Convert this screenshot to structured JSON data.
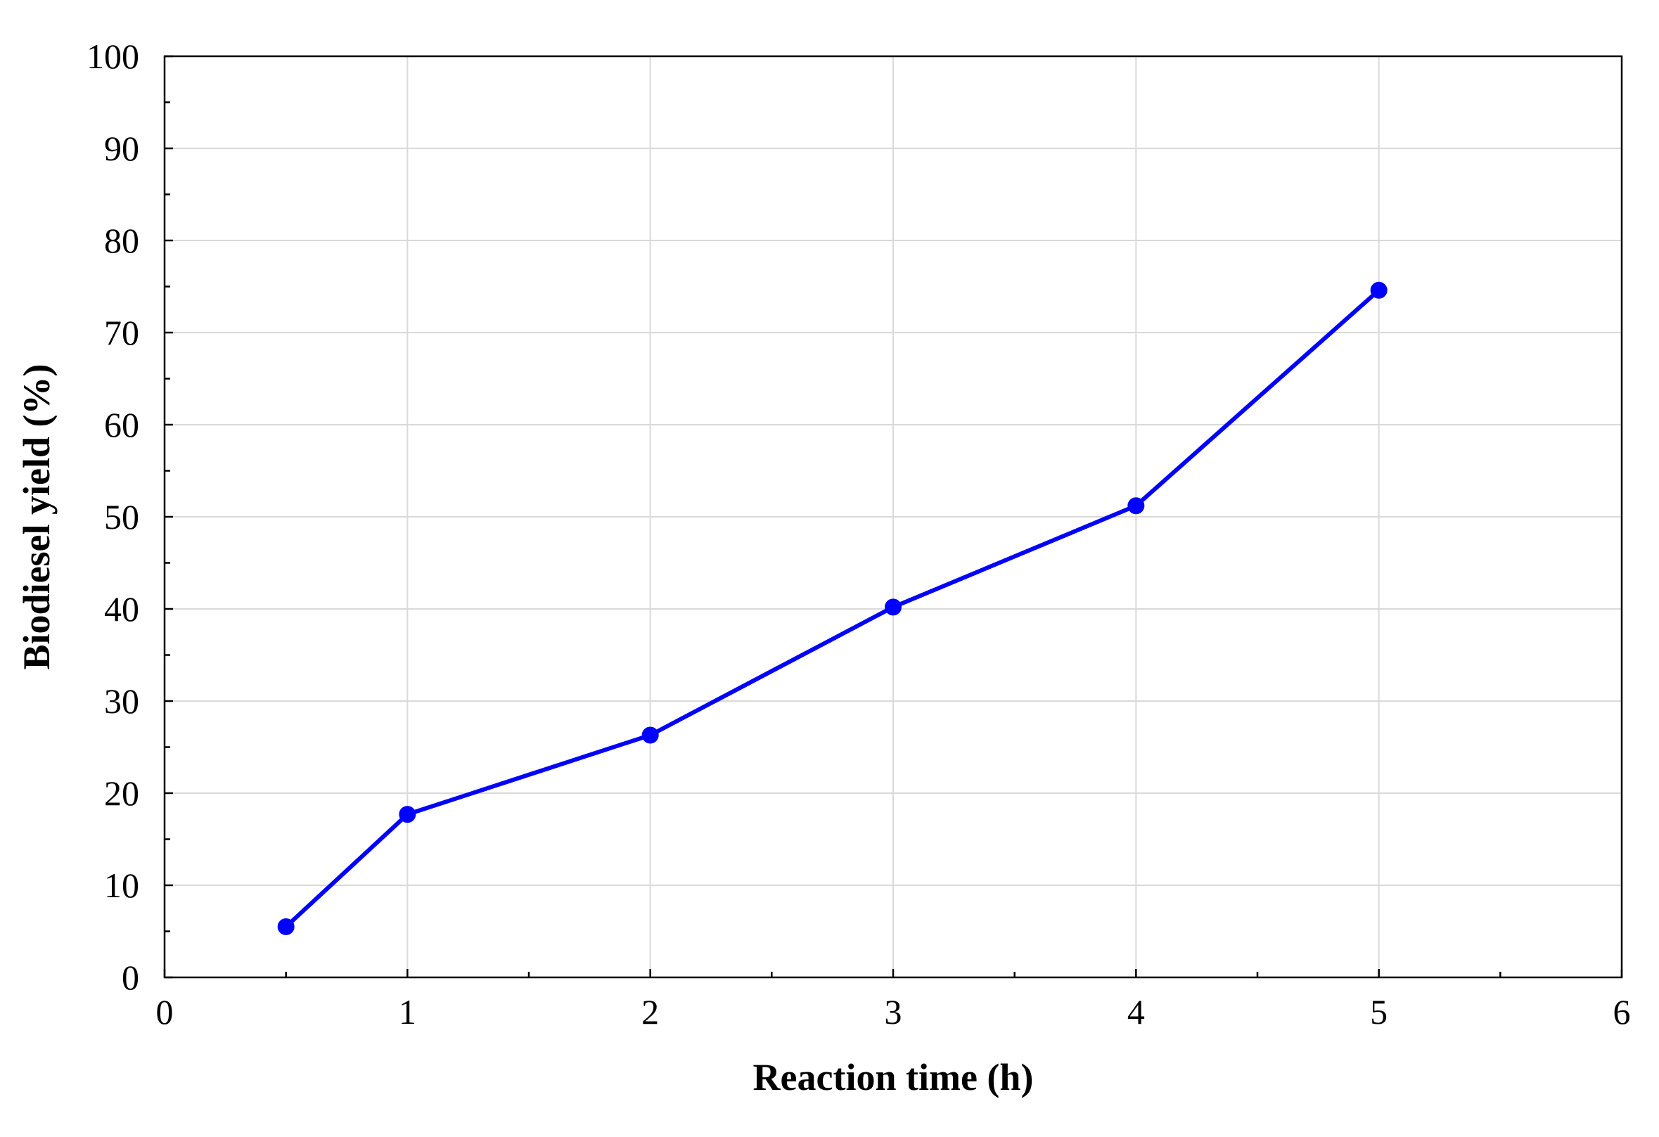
{
  "chart_data": {
    "type": "line",
    "title": "",
    "xlabel": "Reaction time (h)",
    "ylabel": "Biodiesel yield (%)",
    "xlim": [
      0,
      6
    ],
    "ylim": [
      0,
      100
    ],
    "x_ticks": [
      0,
      1,
      2,
      3,
      4,
      5,
      6
    ],
    "y_ticks": [
      0,
      10,
      20,
      30,
      40,
      50,
      60,
      70,
      80,
      90,
      100
    ],
    "x_minor_step": 0.5,
    "y_minor_step": 5,
    "grid": true,
    "legend": "none",
    "series": [
      {
        "x": [
          0.5,
          1,
          2,
          3,
          4,
          5
        ],
        "y": [
          5.5,
          17.7,
          26.3,
          40.2,
          51.2,
          74.6
        ],
        "color": "#0000ff",
        "marker": "circle"
      }
    ]
  }
}
